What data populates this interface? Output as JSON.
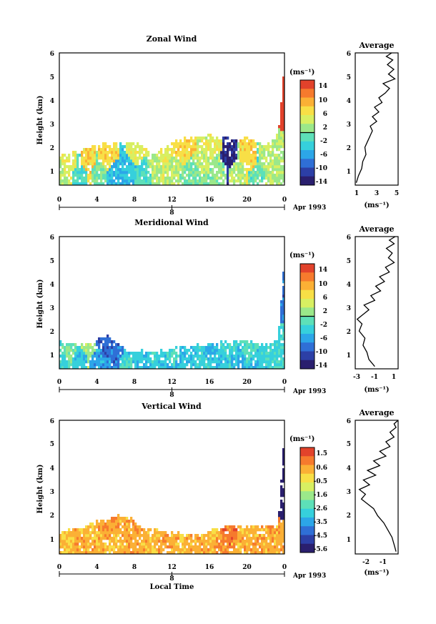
{
  "colors": {
    "jet": [
      "#2a1f6e",
      "#2c3fa6",
      "#2f6fd6",
      "#2ca6e8",
      "#36d0dc",
      "#5de0b8",
      "#9be88a",
      "#d8ef62",
      "#f8df46",
      "#fbb035",
      "#f67a2d",
      "#e2422b"
    ],
    "axis": "#000000",
    "background": "#ffffff"
  },
  "panels": [
    {
      "key": "zonal",
      "title": "Zonal Wind",
      "ylabel": "Height (km)",
      "xticks": [
        "0",
        "4",
        "8",
        "12",
        "16",
        "20",
        "0"
      ],
      "yticks": [
        "1",
        "2",
        "3",
        "4",
        "5",
        "6"
      ],
      "date_marker": "8",
      "date_label": "Apr 1993",
      "colorbar": {
        "unit": "(ms⁻¹)",
        "labels": [
          "14",
          "10",
          "6",
          "2",
          "-2",
          "-6",
          "-10",
          "-14"
        ]
      },
      "average": {
        "title": "Average",
        "unit": "(ms⁻¹)",
        "xticks": [
          "1",
          "3",
          "5"
        ],
        "yticks": [
          "1",
          "2",
          "3",
          "4",
          "5",
          "6"
        ]
      }
    },
    {
      "key": "meridional",
      "title": "Meridional Wind",
      "ylabel": "Height (km)",
      "xticks": [
        "0",
        "4",
        "8",
        "12",
        "16",
        "20",
        "0"
      ],
      "yticks": [
        "1",
        "2",
        "3",
        "4",
        "5",
        "6"
      ],
      "date_marker": "8",
      "date_label": "Apr 1993",
      "colorbar": {
        "unit": "(ms⁻¹)",
        "labels": [
          "14",
          "10",
          "6",
          "2",
          "-2",
          "-6",
          "-10",
          "-14"
        ]
      },
      "average": {
        "title": "Average",
        "unit": "(ms⁻¹)",
        "xticks": [
          "-3",
          "-1",
          "1"
        ],
        "yticks": [
          "1",
          "2",
          "3",
          "4",
          "5",
          "6"
        ]
      }
    },
    {
      "key": "vertical",
      "title": "Vertical Wind",
      "ylabel": "Height (km)",
      "xlabel": "Local Time",
      "xticks": [
        "0",
        "4",
        "8",
        "12",
        "16",
        "20",
        "0"
      ],
      "yticks": [
        "1",
        "2",
        "3",
        "4",
        "5",
        "6"
      ],
      "date_marker": "8",
      "date_label": "Apr 1993",
      "colorbar": {
        "unit": "(ms⁻¹)",
        "labels": [
          "1.5",
          "0.6",
          "-0.5",
          "-1.6",
          "-2.6",
          "-3.5",
          "-4.5",
          "-5.6"
        ]
      },
      "average": {
        "title": "Average",
        "unit": "(ms⁻¹)",
        "xticks": [
          "-2",
          "-1"
        ],
        "yticks": [
          "1",
          "2",
          "3",
          "4",
          "5",
          "6"
        ]
      }
    }
  ],
  "chart_data": [
    {
      "type": "heatmap",
      "title": "Zonal Wind",
      "xlabel": "",
      "ylabel": "Height (km)",
      "xlim": [
        0,
        24
      ],
      "ylim": [
        0.4,
        6
      ],
      "colorbar_range": [
        -14,
        14
      ],
      "coverage_top_km": [
        [
          0,
          1.6
        ],
        [
          2,
          1.9
        ],
        [
          4,
          2.1
        ],
        [
          6,
          2.2
        ],
        [
          8,
          2.2
        ],
        [
          10,
          1.7
        ],
        [
          12,
          2.2
        ],
        [
          14,
          2.4
        ],
        [
          16,
          2.5
        ],
        [
          18,
          2.3
        ],
        [
          20,
          2.4
        ],
        [
          22,
          2.0
        ],
        [
          23.2,
          2.6
        ],
        [
          24,
          5.8
        ]
      ],
      "values": [
        [
          0,
          0.8,
          2
        ],
        [
          1,
          1.2,
          4
        ],
        [
          2,
          1.0,
          -2
        ],
        [
          3,
          1.4,
          6
        ],
        [
          4,
          1.1,
          0
        ],
        [
          5,
          1.6,
          6
        ],
        [
          6,
          1.0,
          -5
        ],
        [
          7,
          1.3,
          -4
        ],
        [
          8,
          1.8,
          4
        ],
        [
          9,
          1.1,
          -2
        ],
        [
          10,
          1.4,
          2
        ],
        [
          11,
          1.7,
          4
        ],
        [
          12,
          1.2,
          2
        ],
        [
          13,
          1.9,
          6
        ],
        [
          14,
          1.0,
          0
        ],
        [
          15,
          1.5,
          3
        ],
        [
          16,
          2.0,
          4
        ],
        [
          17,
          1.3,
          1
        ],
        [
          17.8,
          1.6,
          -12
        ],
        [
          19,
          1.1,
          2
        ],
        [
          20,
          1.4,
          6
        ],
        [
          21,
          1.0,
          -1
        ],
        [
          22,
          1.3,
          2
        ],
        [
          23.5,
          5.0,
          14
        ]
      ]
    },
    {
      "type": "line",
      "title": "Average",
      "xlabel": "(ms⁻¹)",
      "ylabel": "Height (km)",
      "xlim": [
        1,
        5
      ],
      "ylim": [
        0.4,
        6
      ],
      "x": [
        1.1,
        1.3,
        1.6,
        1.7,
        2.0,
        1.9,
        2.2,
        2.4,
        2.6,
        2.4,
        3.0,
        2.6,
        3.2,
        2.8,
        3.5,
        3.2,
        3.8,
        4.2,
        3.6,
        4.7,
        4.1,
        4.6,
        4.0,
        4.5,
        3.9,
        4.4
      ],
      "y": [
        0.5,
        0.8,
        1.1,
        1.4,
        1.7,
        2.0,
        2.3,
        2.5,
        2.7,
        2.9,
        3.1,
        3.3,
        3.5,
        3.7,
        3.9,
        4.1,
        4.3,
        4.5,
        4.7,
        4.9,
        5.1,
        5.3,
        5.5,
        5.7,
        5.85,
        6.0
      ]
    },
    {
      "type": "heatmap",
      "title": "Meridional Wind",
      "xlabel": "",
      "ylabel": "Height (km)",
      "xlim": [
        0,
        24
      ],
      "ylim": [
        0.4,
        6
      ],
      "colorbar_range": [
        -14,
        14
      ],
      "coverage_top_km": [
        [
          0,
          1.5
        ],
        [
          3,
          1.4
        ],
        [
          5,
          1.8
        ],
        [
          7,
          1.2
        ],
        [
          10,
          1.1
        ],
        [
          13,
          1.3
        ],
        [
          16,
          1.4
        ],
        [
          19,
          1.6
        ],
        [
          22,
          1.4
        ],
        [
          23.2,
          1.6
        ],
        [
          24,
          5.8
        ]
      ],
      "values": [
        [
          0,
          0.8,
          -3
        ],
        [
          1,
          1.2,
          0
        ],
        [
          2,
          1.0,
          -4
        ],
        [
          3,
          1.3,
          2
        ],
        [
          4,
          0.9,
          -6
        ],
        [
          5,
          1.5,
          -9
        ],
        [
          6,
          1.2,
          -8
        ],
        [
          7,
          0.9,
          -2
        ],
        [
          8,
          1.1,
          -4
        ],
        [
          9,
          0.8,
          -5
        ],
        [
          10,
          1.0,
          -3
        ],
        [
          11,
          0.7,
          -4
        ],
        [
          12,
          1.1,
          -2
        ],
        [
          13,
          0.8,
          -5
        ],
        [
          14,
          1.0,
          -4
        ],
        [
          15,
          0.7,
          -3
        ],
        [
          16,
          1.2,
          -5
        ],
        [
          17,
          0.9,
          -4
        ],
        [
          18,
          1.3,
          -3
        ],
        [
          19,
          1.0,
          -5
        ],
        [
          20,
          1.3,
          -2
        ],
        [
          21,
          0.8,
          -4
        ],
        [
          22,
          1.1,
          -3
        ],
        [
          23.5,
          4.5,
          -8
        ]
      ]
    },
    {
      "type": "line",
      "title": "Average",
      "xlabel": "(ms⁻¹)",
      "ylabel": "Height (km)",
      "xlim": [
        -3,
        1.4
      ],
      "ylim": [
        0.4,
        6
      ],
      "x": [
        -1.0,
        -1.6,
        -1.8,
        -2.2,
        -2.0,
        -2.6,
        -2.3,
        -2.8,
        -2.2,
        -1.6,
        -2.1,
        -1.0,
        -1.4,
        -0.4,
        -0.9,
        0.0,
        -0.5,
        0.5,
        0.1,
        1.0,
        0.4,
        0.8,
        0.2,
        1.0,
        0.5,
        1.1
      ],
      "y": [
        0.5,
        0.8,
        1.1,
        1.4,
        1.7,
        2.0,
        2.3,
        2.5,
        2.7,
        2.9,
        3.1,
        3.3,
        3.5,
        3.7,
        3.9,
        4.1,
        4.3,
        4.5,
        4.7,
        4.9,
        5.1,
        5.3,
        5.5,
        5.7,
        5.85,
        6.0
      ]
    },
    {
      "type": "heatmap",
      "title": "Vertical Wind",
      "xlabel": "Local Time",
      "ylabel": "Height (km)",
      "xlim": [
        0,
        24
      ],
      "ylim": [
        0.4,
        6
      ],
      "colorbar_range": [
        -5.6,
        1.5
      ],
      "coverage_top_km": [
        [
          0,
          1.3
        ],
        [
          3,
          1.6
        ],
        [
          5,
          1.9
        ],
        [
          7,
          2.0
        ],
        [
          9,
          1.4
        ],
        [
          12,
          1.3
        ],
        [
          15,
          1.2
        ],
        [
          18,
          1.6
        ],
        [
          21,
          1.5
        ],
        [
          23.2,
          1.6
        ],
        [
          24,
          6.0
        ]
      ],
      "values": [
        [
          0,
          0.8,
          0.0
        ],
        [
          1,
          1.0,
          -0.2
        ],
        [
          2,
          0.9,
          0.1
        ],
        [
          3,
          1.2,
          -0.3
        ],
        [
          4,
          1.0,
          0.0
        ],
        [
          5,
          1.5,
          0.2
        ],
        [
          6,
          1.0,
          -0.1
        ],
        [
          7,
          1.2,
          0.0
        ],
        [
          8,
          1.0,
          0.2
        ],
        [
          9,
          0.8,
          0.0
        ],
        [
          10,
          1.1,
          -0.2
        ],
        [
          11,
          0.9,
          0.1
        ],
        [
          12,
          1.0,
          0.0
        ],
        [
          13,
          0.8,
          -0.1
        ],
        [
          14,
          1.1,
          0.1
        ],
        [
          15,
          0.9,
          0.0
        ],
        [
          16,
          1.2,
          -0.2
        ],
        [
          17,
          1.0,
          0.3
        ],
        [
          18,
          1.4,
          0.6
        ],
        [
          19,
          1.0,
          0.0
        ],
        [
          20,
          1.2,
          -0.1
        ],
        [
          21,
          0.9,
          0.1
        ],
        [
          22,
          1.1,
          0.0
        ],
        [
          23.5,
          3.5,
          -5.6
        ]
      ]
    },
    {
      "type": "line",
      "title": "Average",
      "xlabel": "(ms⁻¹)",
      "ylabel": "Height (km)",
      "xlim": [
        -2.4,
        -0.3
      ],
      "ylim": [
        0.4,
        6
      ],
      "x": [
        -0.4,
        -0.5,
        -0.6,
        -0.8,
        -1.0,
        -1.3,
        -1.5,
        -1.8,
        -2.1,
        -1.9,
        -2.2,
        -1.7,
        -2.0,
        -1.4,
        -1.8,
        -1.2,
        -1.5,
        -0.9,
        -1.2,
        -0.7,
        -0.9,
        -0.5,
        -0.7,
        -0.4,
        -0.5,
        -0.3
      ],
      "y": [
        0.5,
        0.8,
        1.1,
        1.4,
        1.7,
        2.0,
        2.3,
        2.5,
        2.7,
        2.9,
        3.1,
        3.3,
        3.5,
        3.7,
        3.9,
        4.1,
        4.3,
        4.5,
        4.7,
        4.9,
        5.1,
        5.3,
        5.5,
        5.7,
        5.85,
        6.0
      ]
    }
  ]
}
